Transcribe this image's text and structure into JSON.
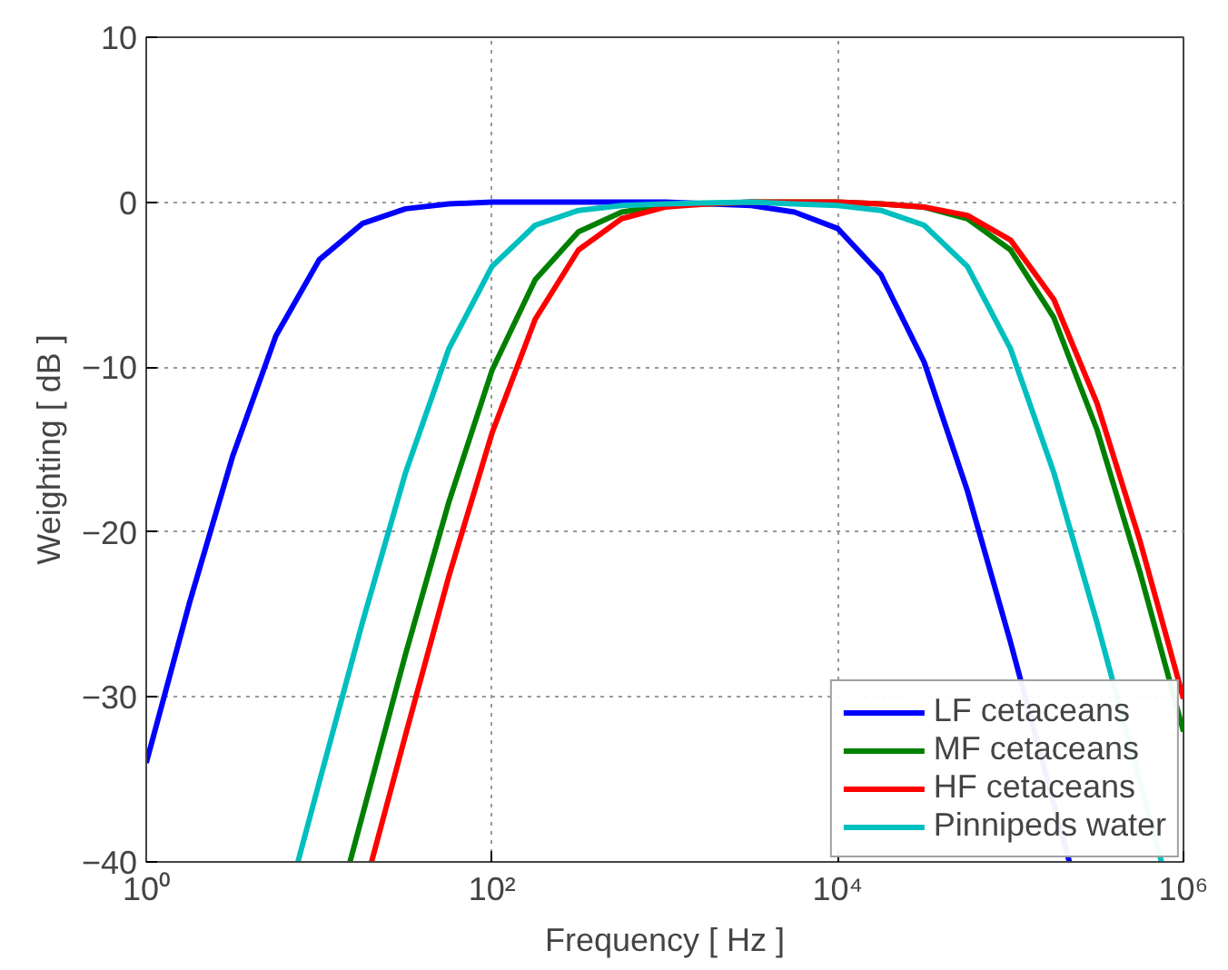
{
  "chart_data": {
    "type": "line",
    "xlabel": "Frequency [ Hz ]",
    "ylabel": "Weighting [ dB ]",
    "log": "x",
    "xlim": [
      1,
      1000000
    ],
    "ylim": [
      -40,
      10
    ],
    "xticks": [
      {
        "value": 1,
        "label": "10⁰"
      },
      {
        "value": 100,
        "label": "10²"
      },
      {
        "value": 10000,
        "label": "10⁴"
      },
      {
        "value": 1000000,
        "label": "10⁶"
      }
    ],
    "yticks": [
      -40,
      -30,
      -20,
      -10,
      0,
      10
    ],
    "grid": true,
    "legend": "bottom right",
    "line_style": "solid",
    "marker": "none",
    "series": [
      {
        "name": "LF cetaceans",
        "color": "#0000ff",
        "x": [
          1,
          1.778,
          3.162,
          5.623,
          10,
          17.78,
          31.62,
          56.23,
          100,
          316.2,
          1000,
          3162,
          5623,
          10000,
          17783,
          31623,
          56234,
          100000,
          218776
        ],
        "values": [
          -34.0,
          -24.3,
          -15.4,
          -8.1,
          -3.5,
          -1.3,
          -0.4,
          -0.1,
          0,
          0,
          0,
          -0.2,
          -0.6,
          -1.6,
          -4.4,
          -9.7,
          -17.5,
          -26.7,
          -40
        ]
      },
      {
        "name": "MF cetaceans",
        "color": "#008000",
        "x": [
          15.08,
          17.78,
          31.62,
          56.23,
          100,
          177.8,
          316.2,
          562.3,
          1000,
          1778,
          3162,
          10000,
          17783,
          31623,
          56234,
          100000,
          177828,
          316228,
          562341,
          1000000
        ],
        "values": [
          -40,
          -37.2,
          -27.4,
          -18.2,
          -10.2,
          -4.7,
          -1.8,
          -0.6,
          -0.2,
          -0.1,
          0,
          0,
          -0.1,
          -0.3,
          -1.0,
          -2.9,
          -7.0,
          -13.8,
          -22.5,
          -32.1
        ]
      },
      {
        "name": "HF cetaceans",
        "color": "#ff0000",
        "x": [
          20.1,
          31.62,
          56.23,
          100,
          177.8,
          316.2,
          562.3,
          1000,
          1778,
          3162,
          10000,
          17783,
          31623,
          56234,
          100000,
          177828,
          316228,
          562341,
          1000000
        ],
        "values": [
          -40,
          -32.3,
          -22.7,
          -14.0,
          -7.1,
          -2.9,
          -1.0,
          -0.3,
          -0.1,
          0,
          0,
          -0.1,
          -0.3,
          -0.8,
          -2.3,
          -5.9,
          -12.2,
          -20.6,
          -30.1
        ]
      },
      {
        "name": "Pinnipeds water",
        "color": "#00bfbf",
        "x": [
          7.54,
          10,
          17.78,
          31.62,
          56.23,
          100,
          177.8,
          316.2,
          562.3,
          1000,
          3162,
          5623,
          10000,
          17783,
          31623,
          56234,
          100000,
          177828,
          316228,
          746000
        ],
        "values": [
          -40,
          -35.2,
          -25.5,
          -16.4,
          -8.9,
          -3.9,
          -1.4,
          -0.5,
          -0.2,
          -0.1,
          0,
          -0.1,
          -0.2,
          -0.5,
          -1.4,
          -3.9,
          -8.9,
          -16.4,
          -25.5,
          -40
        ]
      }
    ]
  }
}
